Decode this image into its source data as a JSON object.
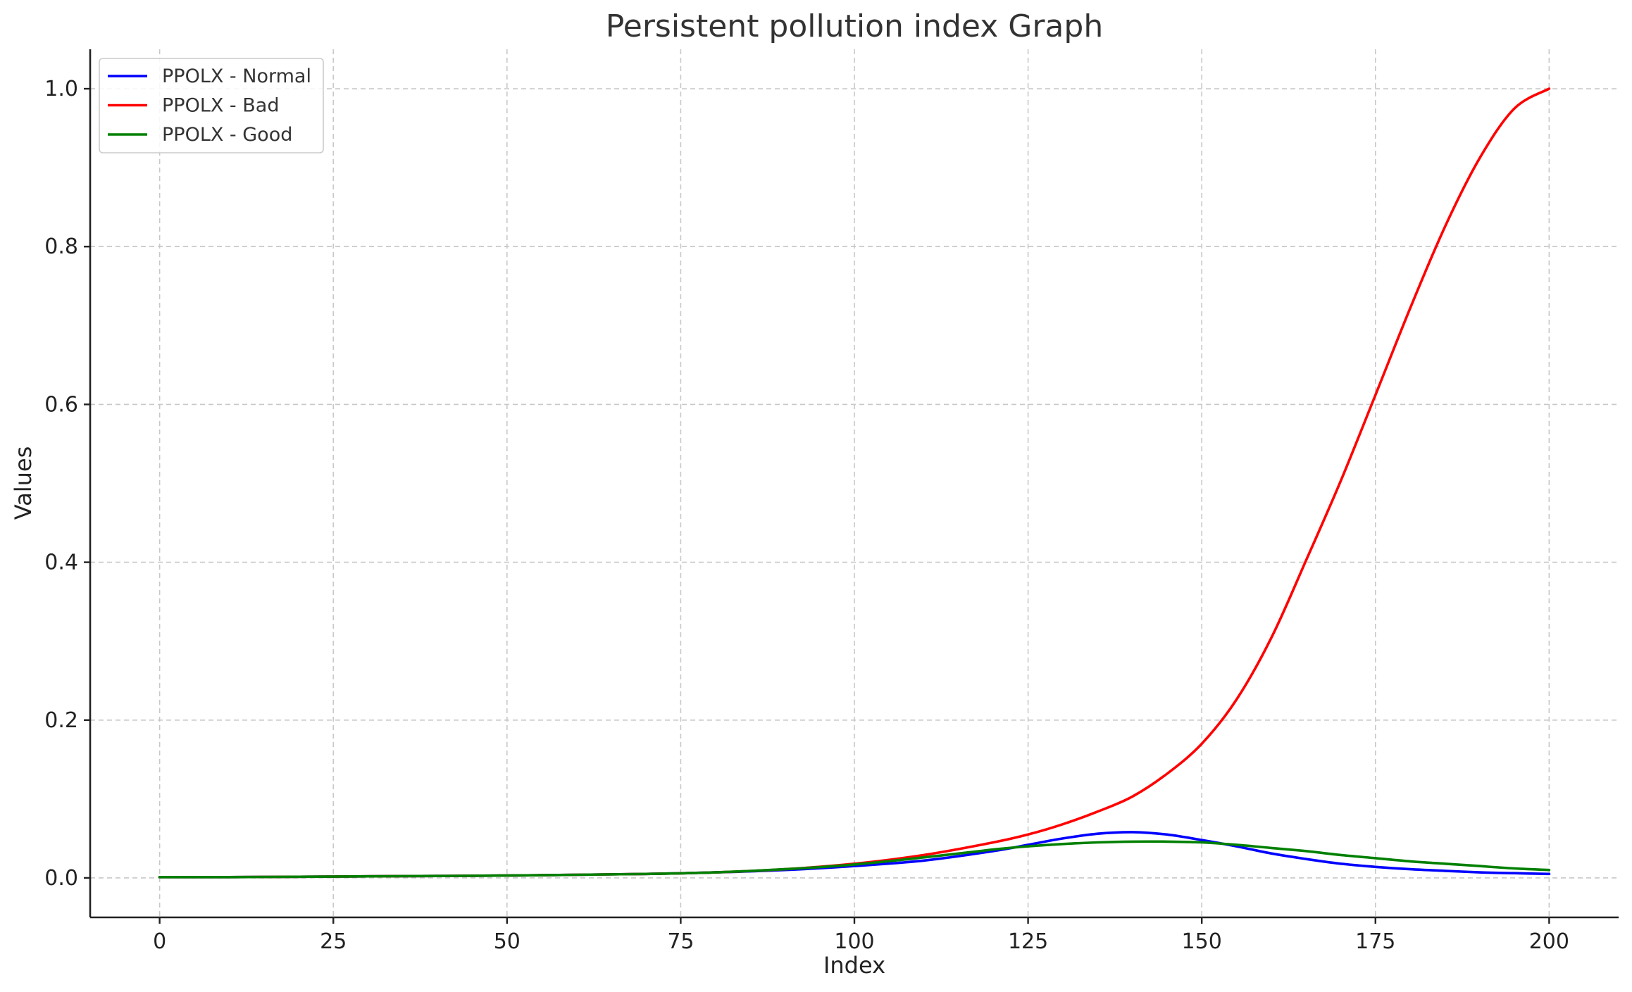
{
  "chart_data": {
    "type": "line",
    "title": "Persistent pollution index Graph",
    "xlabel": "Index",
    "ylabel": "Values",
    "xlim": [
      -10,
      210
    ],
    "ylim": [
      -0.05,
      1.05
    ],
    "x_ticks": [
      0,
      25,
      50,
      75,
      100,
      125,
      150,
      175,
      200
    ],
    "x_tick_labels": [
      "0",
      "25",
      "50",
      "75",
      "100",
      "125",
      "150",
      "175",
      "200"
    ],
    "y_ticks": [
      0.0,
      0.2,
      0.4,
      0.6,
      0.8,
      1.0
    ],
    "y_tick_labels": [
      "0.0",
      "0.2",
      "0.4",
      "0.6",
      "0.8",
      "1.0"
    ],
    "grid": true,
    "legend_position": "top-left",
    "x": [
      0,
      10,
      20,
      30,
      40,
      50,
      60,
      70,
      80,
      90,
      100,
      110,
      120,
      125,
      130,
      135,
      140,
      145,
      150,
      155,
      160,
      165,
      170,
      175,
      180,
      185,
      190,
      195,
      200
    ],
    "series": [
      {
        "name": "PPOLX - Normal",
        "color": "#0000ff",
        "values": [
          0.001,
          0.001,
          0.0015,
          0.002,
          0.0025,
          0.003,
          0.004,
          0.005,
          0.007,
          0.01,
          0.015,
          0.022,
          0.034,
          0.042,
          0.05,
          0.056,
          0.058,
          0.055,
          0.048,
          0.04,
          0.031,
          0.024,
          0.018,
          0.014,
          0.011,
          0.009,
          0.007,
          0.006,
          0.005
        ]
      },
      {
        "name": "PPOLX - Bad",
        "color": "#ff0000",
        "values": [
          0.001,
          0.001,
          0.0015,
          0.002,
          0.0025,
          0.003,
          0.004,
          0.005,
          0.007,
          0.011,
          0.018,
          0.029,
          0.045,
          0.055,
          0.068,
          0.084,
          0.103,
          0.132,
          0.17,
          0.226,
          0.304,
          0.402,
          0.503,
          0.612,
          0.722,
          0.825,
          0.912,
          0.975,
          1.0
        ]
      },
      {
        "name": "PPOLX - Good",
        "color": "#008000",
        "values": [
          0.001,
          0.001,
          0.0015,
          0.002,
          0.0025,
          0.003,
          0.004,
          0.005,
          0.007,
          0.011,
          0.017,
          0.026,
          0.036,
          0.04,
          0.043,
          0.045,
          0.046,
          0.046,
          0.045,
          0.042,
          0.038,
          0.034,
          0.029,
          0.025,
          0.021,
          0.018,
          0.015,
          0.012,
          0.01
        ]
      }
    ]
  }
}
